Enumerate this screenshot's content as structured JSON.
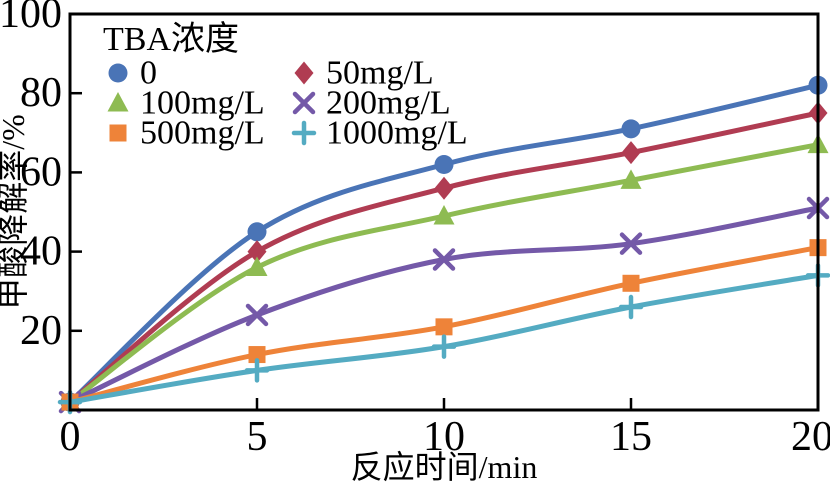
{
  "chart_data": {
    "type": "line",
    "title": "",
    "xlabel": "反应时间/min",
    "ylabel": "甲酸降解率/%",
    "xlim": [
      0,
      20
    ],
    "ylim": [
      0,
      100
    ],
    "xticks": [
      0,
      5,
      10,
      15,
      20
    ],
    "yticks": [
      0,
      20,
      40,
      60,
      80,
      100
    ],
    "ytick_labels_shown": [
      "20",
      "40",
      "60",
      "80",
      "100"
    ],
    "grid": false,
    "frame": true,
    "frame_color": "#000000",
    "x": [
      0,
      5,
      10,
      15,
      20
    ],
    "series": [
      {
        "name": "0",
        "color": "#4a74b6",
        "marker": "circle",
        "values": [
          2,
          45,
          62,
          71,
          82
        ]
      },
      {
        "name": "50mg/L",
        "color": "#b03c52",
        "marker": "diamond",
        "values": [
          2,
          40,
          56,
          65,
          75
        ]
      },
      {
        "name": "100mg/L",
        "color": "#8ebb52",
        "marker": "triangle",
        "values": [
          2,
          36,
          49,
          58,
          67
        ]
      },
      {
        "name": "200mg/L",
        "color": "#7459a8",
        "marker": "x",
        "values": [
          2,
          24,
          38,
          42,
          51
        ]
      },
      {
        "name": "500mg/L",
        "color": "#ee8339",
        "marker": "square",
        "values": [
          2,
          14,
          21,
          32,
          41
        ]
      },
      {
        "name": "1000mg/L",
        "color": "#54abc2",
        "marker": "plus",
        "values": [
          2,
          10,
          16,
          26,
          34
        ]
      }
    ],
    "legend": {
      "title": "TBA浓度",
      "position": "top-left-inside",
      "columns": 2,
      "order_row_major": [
        "0",
        "50mg/L",
        "100mg/L",
        "200mg/L",
        "500mg/L",
        "1000mg/L"
      ]
    }
  }
}
